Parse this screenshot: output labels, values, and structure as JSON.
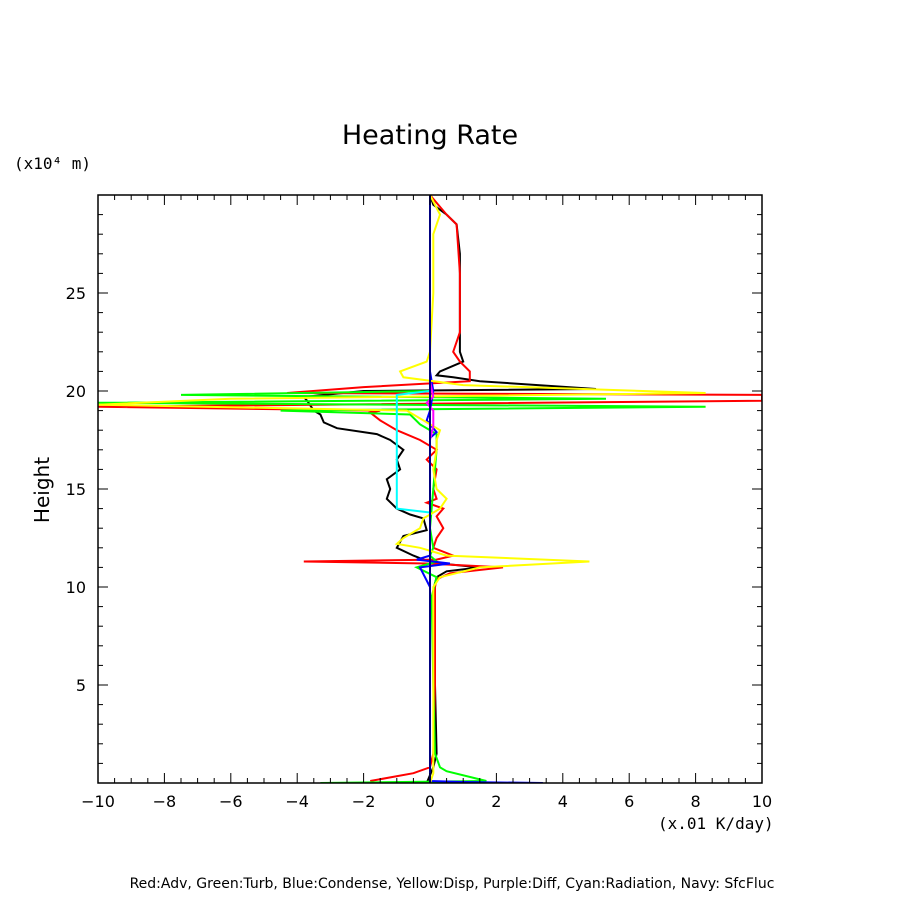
{
  "chart_data": {
    "type": "line",
    "title": "Heating Rate",
    "xlabel": "(x.01 K/day)",
    "ylabel": "Height",
    "y_unit": "(x10⁴ m)",
    "xlim": [
      -10,
      10
    ],
    "ylim": [
      0,
      30
    ],
    "x_ticks": [
      -10,
      -8,
      -6,
      -4,
      -2,
      0,
      2,
      4,
      6,
      8,
      10
    ],
    "y_ticks": [
      5,
      10,
      15,
      20,
      25
    ],
    "grid": false,
    "caption": "Red:Adv, Green:Turb, Blue:Condense, Yellow:Disp, Purple:Diff, Cyan:Radiation, Navy: SfcFluc",
    "series": [
      {
        "color": "#000000",
        "points": [
          [
            -0.1,
            0
          ],
          [
            0.1,
            0.8
          ],
          [
            0.2,
            1.5
          ],
          [
            0.15,
            5
          ],
          [
            0.12,
            10
          ],
          [
            0.2,
            10.5
          ],
          [
            0.5,
            10.8
          ],
          [
            1.5,
            11
          ],
          [
            0.3,
            11.2
          ],
          [
            -0.2,
            11.4
          ],
          [
            -0.5,
            11.6
          ],
          [
            -1,
            12
          ],
          [
            -0.8,
            12.6
          ],
          [
            -0.1,
            12.9
          ],
          [
            -0.2,
            13.5
          ],
          [
            -0.6,
            13.7
          ],
          [
            -1,
            14
          ],
          [
            -1.3,
            14.5
          ],
          [
            -1.2,
            15
          ],
          [
            -1.3,
            15.5
          ],
          [
            -0.9,
            16
          ],
          [
            -1,
            16.5
          ],
          [
            -0.8,
            17
          ],
          [
            -1.2,
            17.5
          ],
          [
            -1.6,
            17.8
          ],
          [
            -2.8,
            18.1
          ],
          [
            -3.2,
            18.4
          ],
          [
            -3.3,
            18.8
          ],
          [
            -3.5,
            19
          ],
          [
            -3.7,
            19.5
          ],
          [
            -3.8,
            19.7
          ],
          [
            -2,
            20
          ],
          [
            5,
            20.1
          ],
          [
            1.5,
            20.5
          ],
          [
            0.7,
            20.7
          ],
          [
            0.2,
            20.8
          ],
          [
            0.3,
            21
          ],
          [
            1,
            21.5
          ],
          [
            0.9,
            22
          ],
          [
            0.9,
            24
          ],
          [
            0.9,
            27
          ],
          [
            0.8,
            28.5
          ],
          [
            0.5,
            29
          ],
          [
            0.1,
            29.5
          ],
          [
            0,
            30
          ]
        ]
      },
      {
        "color": "#ff0000",
        "points": [
          [
            -1.8,
            0.1
          ],
          [
            -0.5,
            0.5
          ],
          [
            0,
            0.8
          ],
          [
            0.1,
            1.5
          ],
          [
            0.15,
            5
          ],
          [
            0.15,
            10
          ],
          [
            0.2,
            10.4
          ],
          [
            0.6,
            10.7
          ],
          [
            2.2,
            11
          ],
          [
            -0.1,
            11.2
          ],
          [
            -3.8,
            11.3
          ],
          [
            0.2,
            11.4
          ],
          [
            0.7,
            11.6
          ],
          [
            0.1,
            12
          ],
          [
            0.2,
            12.5
          ],
          [
            0.4,
            13
          ],
          [
            0.2,
            13.6
          ],
          [
            0.4,
            14
          ],
          [
            -0.1,
            14.3
          ],
          [
            0.2,
            14.5
          ],
          [
            0.1,
            15
          ],
          [
            0.2,
            16
          ],
          [
            -0.1,
            16.5
          ],
          [
            0.2,
            17
          ],
          [
            -0.3,
            17.5
          ],
          [
            -1,
            18
          ],
          [
            -1.5,
            18.5
          ],
          [
            -1.8,
            18.9
          ],
          [
            -1.5,
            19
          ],
          [
            -10,
            19.2
          ],
          [
            10,
            19.5
          ],
          [
            10,
            19.8
          ],
          [
            -4.3,
            19.9
          ],
          [
            -2,
            20.2
          ],
          [
            1.2,
            20.5
          ],
          [
            1.2,
            21
          ],
          [
            0.9,
            21.5
          ],
          [
            0.7,
            22
          ],
          [
            0.9,
            23
          ],
          [
            0.9,
            26
          ],
          [
            0.8,
            28.5
          ],
          [
            0.5,
            29
          ],
          [
            0,
            30
          ]
        ]
      },
      {
        "color": "#00ff00",
        "points": [
          [
            -3.3,
            0
          ],
          [
            1.7,
            0.1
          ],
          [
            0.5,
            0.6
          ],
          [
            0.3,
            0.8
          ],
          [
            0.15,
            1.5
          ],
          [
            0.1,
            5
          ],
          [
            0.05,
            9.5
          ],
          [
            0.2,
            10.5
          ],
          [
            -0.4,
            11
          ],
          [
            0.2,
            11.3
          ],
          [
            0,
            11.6
          ],
          [
            0.1,
            12
          ],
          [
            0,
            13
          ],
          [
            0.2,
            17
          ],
          [
            0.2,
            17.8
          ],
          [
            -0.3,
            18.3
          ],
          [
            -0.6,
            18.8
          ],
          [
            -4.5,
            19
          ],
          [
            8.3,
            19.2
          ],
          [
            -10,
            19.4
          ],
          [
            5.3,
            19.6
          ],
          [
            -7.5,
            19.8
          ],
          [
            0,
            20
          ]
        ]
      },
      {
        "color": "#0000ff",
        "points": [
          [
            3.4,
            0
          ],
          [
            1,
            0.05
          ],
          [
            0,
            0.1
          ],
          [
            0,
            10
          ],
          [
            -0.3,
            11
          ],
          [
            0.6,
            11.2
          ],
          [
            -0.4,
            11.4
          ],
          [
            0,
            11.6
          ],
          [
            0,
            17
          ],
          [
            0,
            17.6
          ],
          [
            0.2,
            17.9
          ],
          [
            -0.1,
            18.5
          ],
          [
            0,
            19
          ],
          [
            0.1,
            20
          ],
          [
            0,
            21
          ]
        ]
      },
      {
        "color": "#ffff00",
        "points": [
          [
            0,
            0
          ],
          [
            0.1,
            0.5
          ],
          [
            0.1,
            5
          ],
          [
            0.1,
            10
          ],
          [
            0.3,
            10.5
          ],
          [
            1.5,
            11
          ],
          [
            4.8,
            11.3
          ],
          [
            0.5,
            11.6
          ],
          [
            -0.3,
            12
          ],
          [
            -1,
            12.2
          ],
          [
            -0.8,
            12.5
          ],
          [
            -0.3,
            13
          ],
          [
            -0.2,
            13.5
          ],
          [
            0.3,
            14
          ],
          [
            0.5,
            14.5
          ],
          [
            0.2,
            15
          ],
          [
            0.1,
            16
          ],
          [
            0.2,
            17
          ],
          [
            0.2,
            17.5
          ],
          [
            0.3,
            18
          ],
          [
            -0.7,
            19
          ],
          [
            -10,
            19.3
          ],
          [
            -6,
            19.6
          ],
          [
            8.3,
            19.9
          ],
          [
            1,
            20.3
          ],
          [
            -0.8,
            20.7
          ],
          [
            -0.9,
            21
          ],
          [
            -0.1,
            21.5
          ],
          [
            0,
            22
          ],
          [
            0.1,
            25
          ],
          [
            0.1,
            28
          ],
          [
            0.3,
            29
          ],
          [
            0,
            30
          ]
        ]
      },
      {
        "color": "#ff00ff",
        "points": [
          [
            0,
            0
          ],
          [
            0,
            17.5
          ],
          [
            0.1,
            18.2
          ],
          [
            0.1,
            19
          ],
          [
            -0.1,
            19.4
          ],
          [
            0.1,
            19.7
          ],
          [
            0,
            20.5
          ],
          [
            0,
            30
          ]
        ]
      },
      {
        "color": "#00ffff",
        "points": [
          [
            0,
            0
          ],
          [
            0,
            13.8
          ],
          [
            -1,
            14
          ],
          [
            -1,
            15
          ],
          [
            -1,
            17
          ],
          [
            -1,
            19
          ],
          [
            -1,
            19.8
          ],
          [
            0,
            20
          ],
          [
            0,
            30
          ]
        ]
      },
      {
        "color": "#000080",
        "points": [
          [
            0,
            0
          ],
          [
            0,
            30
          ]
        ]
      }
    ]
  }
}
